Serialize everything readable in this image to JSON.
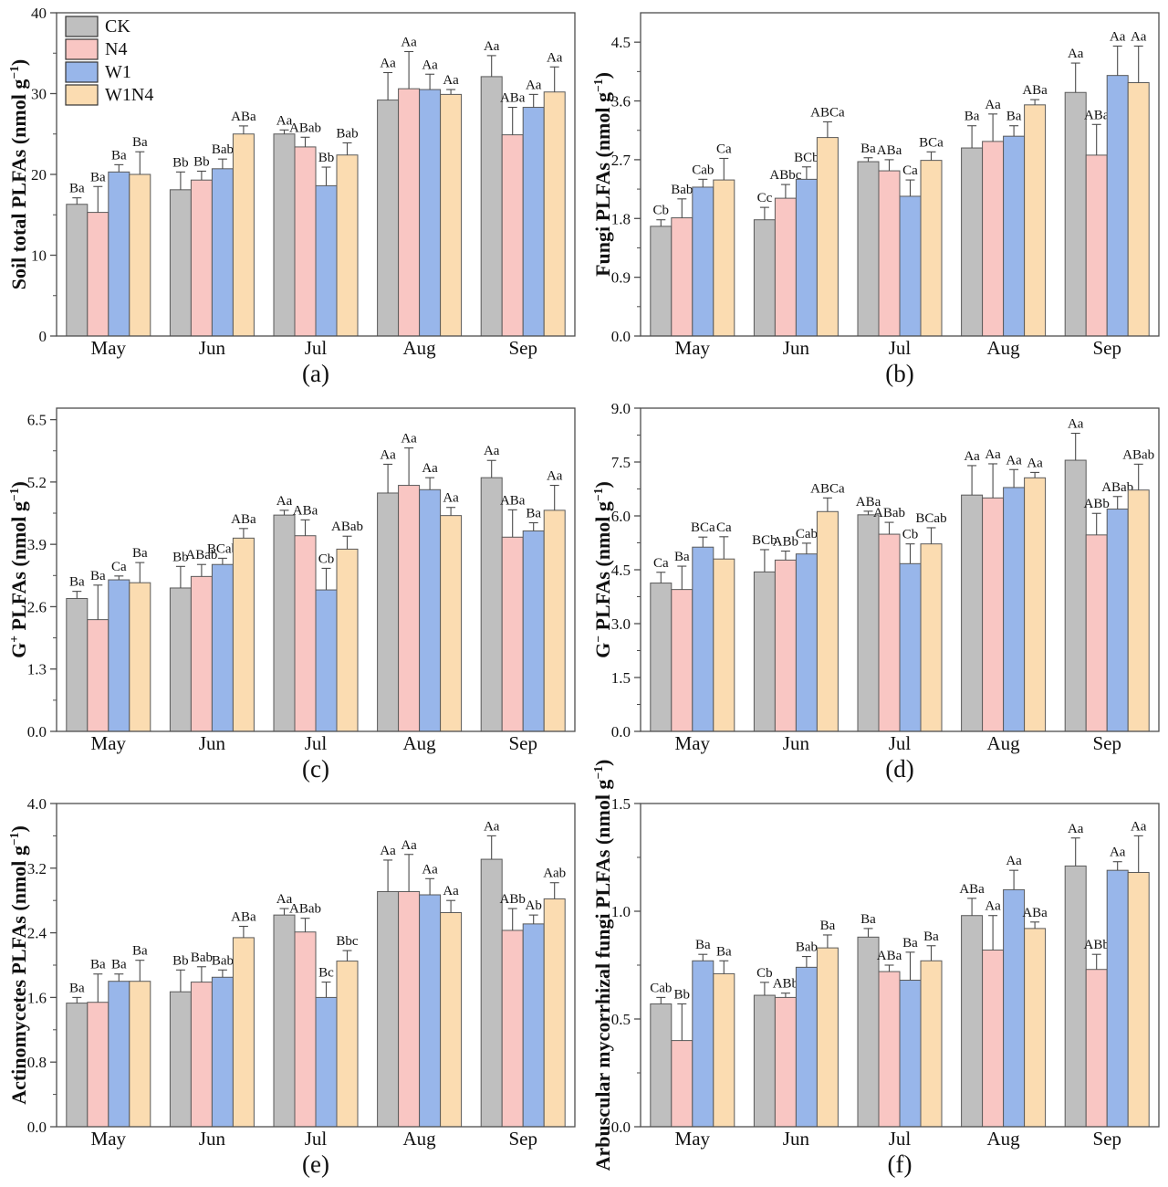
{
  "figure": {
    "treatments": [
      "CK",
      "N4",
      "W1",
      "W1N4"
    ],
    "months": [
      "May",
      "Jun",
      "Jul",
      "Aug",
      "Sep"
    ],
    "colors": {
      "CK": "#BFBFBF",
      "N4": "#F9C6C3",
      "W1": "#98B6EA",
      "W1N4": "#FBDCB1"
    },
    "bar_outline": "#5a5a5a",
    "axis_color": "#4d4d4d",
    "error_bar_color": "#4a4a4a"
  },
  "legend": {
    "items": [
      {
        "label": "CK",
        "color": "#BFBFBF"
      },
      {
        "label": "N4",
        "color": "#F9C6C3"
      },
      {
        "label": "W1",
        "color": "#98B6EA"
      },
      {
        "label": "W1N4",
        "color": "#FBDCB1"
      }
    ]
  },
  "chart_data": [
    {
      "type": "bar",
      "panel_label": "(a)",
      "ylabel": "Soil total PLFAs (nmol g−1)",
      "ylabel_parts": [
        "Soil total PLFAs (nmol g",
        {
          "sup": "−1"
        },
        ")"
      ],
      "ylim": [
        0,
        40
      ],
      "yticks": [
        "0",
        "10",
        "20",
        "30",
        "40"
      ],
      "categories": [
        "May",
        "Jun",
        "Jul",
        "Aug",
        "Sep"
      ],
      "legend": true,
      "series": [
        {
          "name": "CK",
          "color": "#BFBFBF",
          "values": [
            16.3,
            18.1,
            25.0,
            29.2,
            32.1
          ],
          "errors": [
            0.8,
            2.2,
            0.5,
            3.4,
            2.6
          ],
          "sig": [
            "Ba",
            "Bb",
            "Aa",
            "Aa",
            "Aa"
          ]
        },
        {
          "name": "N4",
          "color": "#F9C6C3",
          "values": [
            15.3,
            19.3,
            23.4,
            30.6,
            24.9
          ],
          "errors": [
            3.2,
            1.1,
            1.2,
            4.6,
            3.4
          ],
          "sig": [
            "Ba",
            "Bb",
            "ABab",
            "Aa",
            "ABa"
          ]
        },
        {
          "name": "W1",
          "color": "#98B6EA",
          "values": [
            20.3,
            20.7,
            18.6,
            30.5,
            28.3
          ],
          "errors": [
            0.9,
            1.2,
            2.3,
            1.9,
            1.6
          ],
          "sig": [
            "Ba",
            "Bab",
            "Bb",
            "Aa",
            "Aa"
          ]
        },
        {
          "name": "W1N4",
          "color": "#FBDCB1",
          "values": [
            20.0,
            25.0,
            22.4,
            29.9,
            30.2
          ],
          "errors": [
            2.8,
            1.0,
            1.5,
            0.6,
            3.1
          ],
          "sig": [
            "Ba",
            "ABa",
            "Bab",
            "Aa",
            "Aa"
          ]
        }
      ]
    },
    {
      "type": "bar",
      "panel_label": "(b)",
      "ylabel": "Fungi PLFAs (nmol g−1)",
      "ylabel_parts": [
        "Fungi PLFAs (nmol g",
        {
          "sup": "−1"
        },
        ")"
      ],
      "ylim": [
        0,
        4.95
      ],
      "yticks": [
        "0.0",
        "0.9",
        "1.8",
        "2.7",
        "3.6",
        "4.5"
      ],
      "categories": [
        "May",
        "Jun",
        "Jul",
        "Aug",
        "Sep"
      ],
      "legend": false,
      "series": [
        {
          "name": "CK",
          "color": "#BFBFBF",
          "values": [
            1.68,
            1.78,
            2.67,
            2.88,
            3.73
          ],
          "errors": [
            0.1,
            0.19,
            0.06,
            0.34,
            0.45
          ],
          "sig": [
            "Cb",
            "Cc",
            "Ba",
            "Ba",
            "Aa"
          ]
        },
        {
          "name": "N4",
          "color": "#F9C6C3",
          "values": [
            1.81,
            2.11,
            2.53,
            2.98,
            2.77
          ],
          "errors": [
            0.29,
            0.21,
            0.17,
            0.42,
            0.47
          ],
          "sig": [
            "Bab",
            "ABbc",
            "ABa",
            "Aa",
            "ABa"
          ]
        },
        {
          "name": "W1",
          "color": "#98B6EA",
          "values": [
            2.28,
            2.4,
            2.14,
            3.06,
            3.99
          ],
          "errors": [
            0.12,
            0.19,
            0.25,
            0.16,
            0.45
          ],
          "sig": [
            "Cab",
            "BCb",
            "Ca",
            "Ba",
            "Aa"
          ]
        },
        {
          "name": "W1N4",
          "color": "#FBDCB1",
          "values": [
            2.39,
            3.04,
            2.69,
            3.54,
            3.88
          ],
          "errors": [
            0.33,
            0.24,
            0.13,
            0.08,
            0.56
          ],
          "sig": [
            "Ca",
            "ABCa",
            "BCa",
            "ABa",
            "Aa"
          ]
        }
      ]
    },
    {
      "type": "bar",
      "panel_label": "(c)",
      "ylabel": "G+ PLFAs (nmol g−1)",
      "ylabel_parts": [
        "G",
        {
          "sup": "+"
        },
        " PLFAs (nmol g",
        {
          "sup": "−1"
        },
        ")"
      ],
      "ylim": [
        0,
        6.74
      ],
      "yticks": [
        "0.0",
        "1.3",
        "2.6",
        "3.9",
        "5.2",
        "6.5"
      ],
      "categories": [
        "May",
        "Jun",
        "Jul",
        "Aug",
        "Sep"
      ],
      "legend": false,
      "series": [
        {
          "name": "CK",
          "color": "#BFBFBF",
          "values": [
            2.77,
            2.99,
            4.51,
            4.97,
            5.29
          ],
          "errors": [
            0.15,
            0.45,
            0.1,
            0.6,
            0.36
          ],
          "sig": [
            "Ba",
            "Bb",
            "Aa",
            "Aa",
            "Aa"
          ]
        },
        {
          "name": "N4",
          "color": "#F9C6C3",
          "values": [
            2.33,
            3.23,
            4.08,
            5.13,
            4.05
          ],
          "errors": [
            0.72,
            0.25,
            0.33,
            0.78,
            0.57
          ],
          "sig": [
            "Ba",
            "ABab",
            "ABa",
            "Aa",
            "ABa"
          ]
        },
        {
          "name": "W1",
          "color": "#98B6EA",
          "values": [
            3.16,
            3.48,
            2.95,
            5.04,
            4.18
          ],
          "errors": [
            0.08,
            0.13,
            0.45,
            0.25,
            0.17
          ],
          "sig": [
            "Ca",
            "BCab",
            "Cb",
            "Aa",
            "Ba"
          ]
        },
        {
          "name": "W1N4",
          "color": "#FBDCB1",
          "values": [
            3.1,
            4.03,
            3.8,
            4.5,
            4.61
          ],
          "errors": [
            0.42,
            0.2,
            0.27,
            0.17,
            0.52
          ],
          "sig": [
            "Ba",
            "ABa",
            "ABab",
            "Aa",
            "Aa"
          ]
        }
      ]
    },
    {
      "type": "bar",
      "panel_label": "(d)",
      "ylabel": "G− PLFAs (nmol g−1)",
      "ylabel_parts": [
        "G",
        {
          "sup": "−"
        },
        " PLFAs (nmol g",
        {
          "sup": "−1"
        },
        ")"
      ],
      "ylim": [
        0,
        9.0
      ],
      "yticks": [
        "0.0",
        "1.5",
        "3.0",
        "4.5",
        "6.0",
        "7.5",
        "9.0"
      ],
      "categories": [
        "May",
        "Jun",
        "Jul",
        "Aug",
        "Sep"
      ],
      "legend": false,
      "series": [
        {
          "name": "CK",
          "color": "#BFBFBF",
          "values": [
            4.13,
            4.44,
            6.03,
            6.58,
            7.55
          ],
          "errors": [
            0.3,
            0.62,
            0.1,
            0.82,
            0.75
          ],
          "sig": [
            "Ca",
            "BCb",
            "ABa",
            "Aa",
            "Aa"
          ]
        },
        {
          "name": "N4",
          "color": "#F9C6C3",
          "values": [
            3.95,
            4.77,
            5.49,
            6.5,
            5.47
          ],
          "errors": [
            0.65,
            0.25,
            0.33,
            0.95,
            0.6
          ],
          "sig": [
            "Ba",
            "ABb",
            "ABab",
            "Aa",
            "ABb"
          ]
        },
        {
          "name": "W1",
          "color": "#98B6EA",
          "values": [
            5.13,
            4.94,
            4.67,
            6.79,
            6.19
          ],
          "errors": [
            0.28,
            0.3,
            0.55,
            0.5,
            0.35
          ],
          "sig": [
            "BCa",
            "Cab",
            "Cb",
            "Aa",
            "ABab"
          ]
        },
        {
          "name": "W1N4",
          "color": "#FBDCB1",
          "values": [
            4.8,
            6.12,
            5.22,
            7.06,
            6.72
          ],
          "errors": [
            0.62,
            0.38,
            0.45,
            0.15,
            0.72
          ],
          "sig": [
            "Ca",
            "ABCa",
            "BCab",
            "Aa",
            "ABab"
          ]
        }
      ]
    },
    {
      "type": "bar",
      "panel_label": "(e)",
      "ylabel": "Actinomycetes PLFAs (nmol g−1)",
      "ylabel_parts": [
        "Actinomycetes PLFAs (nmol g",
        {
          "sup": "−1"
        },
        ")"
      ],
      "ylim": [
        0,
        4.0
      ],
      "yticks": [
        "0.0",
        "0.8",
        "1.6",
        "2.4",
        "3.2",
        "4.0"
      ],
      "categories": [
        "May",
        "Jun",
        "Jul",
        "Aug",
        "Sep"
      ],
      "legend": false,
      "series": [
        {
          "name": "CK",
          "color": "#BFBFBF",
          "values": [
            1.53,
            1.67,
            2.62,
            2.91,
            3.31
          ],
          "errors": [
            0.07,
            0.27,
            0.08,
            0.39,
            0.29
          ],
          "sig": [
            "Ba",
            "Bb",
            "Aa",
            "Aa",
            "Aa"
          ]
        },
        {
          "name": "N4",
          "color": "#F9C6C3",
          "values": [
            1.54,
            1.79,
            2.41,
            2.91,
            2.43
          ],
          "errors": [
            0.35,
            0.19,
            0.17,
            0.46,
            0.27
          ],
          "sig": [
            "Ba",
            "Bab",
            "ABab",
            "Aa",
            "ABb"
          ]
        },
        {
          "name": "W1",
          "color": "#98B6EA",
          "values": [
            1.8,
            1.85,
            1.6,
            2.87,
            2.51
          ],
          "errors": [
            0.09,
            0.09,
            0.19,
            0.2,
            0.11
          ],
          "sig": [
            "Ba",
            "Bab",
            "Bc",
            "Aa",
            "Ab"
          ]
        },
        {
          "name": "W1N4",
          "color": "#FBDCB1",
          "values": [
            1.8,
            2.34,
            2.05,
            2.65,
            2.82
          ],
          "errors": [
            0.26,
            0.14,
            0.13,
            0.15,
            0.2
          ],
          "sig": [
            "Ba",
            "ABa",
            "Bbc",
            "Aa",
            "Aab"
          ]
        }
      ]
    },
    {
      "type": "bar",
      "panel_label": "(f)",
      "ylabel": "Arbuscular mycorrhizal fungi PLFAs (nmol g−1)",
      "ylabel_parts": [
        "Arbuscular mycorrhizal fungi PLFAs (nmol g",
        {
          "sup": "−1"
        },
        ")"
      ],
      "ylim": [
        0,
        1.5
      ],
      "yticks": [
        "0.0",
        "0.5",
        "1.0",
        "1.5"
      ],
      "categories": [
        "May",
        "Jun",
        "Jul",
        "Aug",
        "Sep"
      ],
      "legend": false,
      "series": [
        {
          "name": "CK",
          "color": "#BFBFBF",
          "values": [
            0.57,
            0.61,
            0.88,
            0.98,
            1.21
          ],
          "errors": [
            0.03,
            0.06,
            0.04,
            0.08,
            0.13
          ],
          "sig": [
            "Cab",
            "Cb",
            "Ba",
            "ABa",
            "Aa"
          ]
        },
        {
          "name": "N4",
          "color": "#F9C6C3",
          "values": [
            0.4,
            0.6,
            0.72,
            0.82,
            0.73
          ],
          "errors": [
            0.17,
            0.02,
            0.03,
            0.16,
            0.07
          ],
          "sig": [
            "Bb",
            "ABb",
            "ABa",
            "Aa",
            "ABb"
          ]
        },
        {
          "name": "W1",
          "color": "#98B6EA",
          "values": [
            0.77,
            0.74,
            0.68,
            1.1,
            1.19
          ],
          "errors": [
            0.03,
            0.05,
            0.13,
            0.09,
            0.04
          ],
          "sig": [
            "Ba",
            "Bab",
            "Ba",
            "Aa",
            "Aa"
          ]
        },
        {
          "name": "W1N4",
          "color": "#FBDCB1",
          "values": [
            0.71,
            0.83,
            0.77,
            0.92,
            1.18
          ],
          "errors": [
            0.06,
            0.06,
            0.07,
            0.03,
            0.17
          ],
          "sig": [
            "Ba",
            "Ba",
            "Ba",
            "ABa",
            "Aa"
          ]
        }
      ]
    }
  ]
}
